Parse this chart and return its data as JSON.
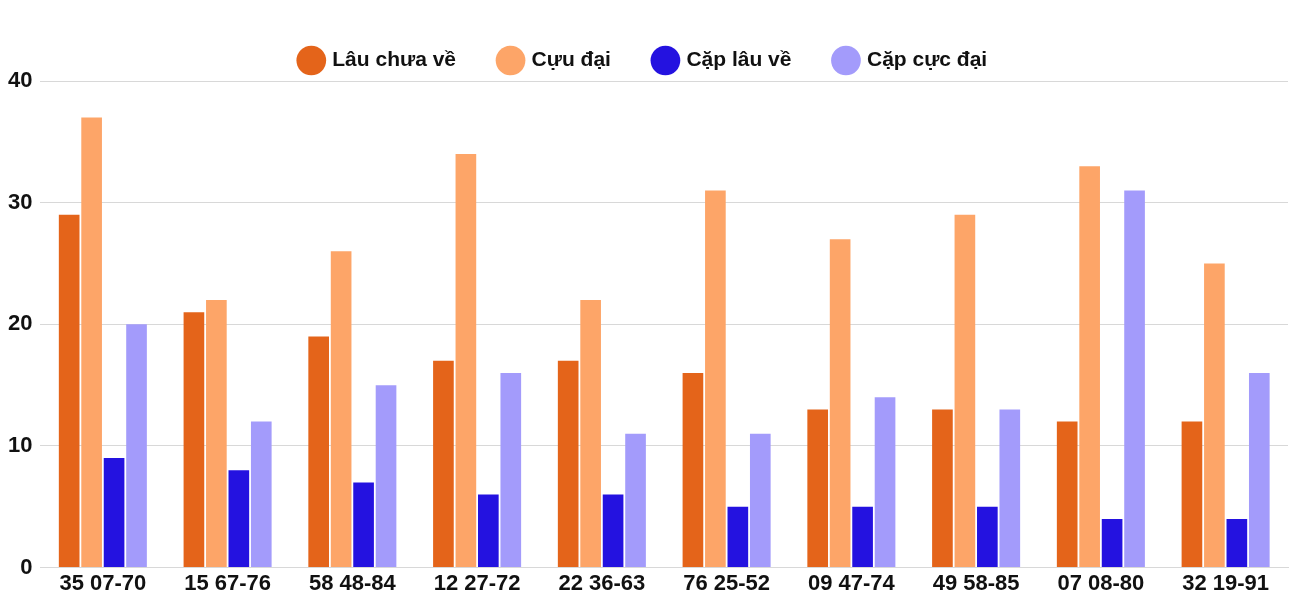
{
  "chart_data": {
    "type": "bar",
    "categories": [
      "35 07-70",
      "15 67-76",
      "58 48-84",
      "12 27-72",
      "22 36-63",
      "76 25-52",
      "09 47-74",
      "49 58-85",
      "07 08-80",
      "32 19-91"
    ],
    "series": [
      {
        "name": "Lâu chưa về",
        "color": "#e4641a",
        "values": [
          29,
          21,
          19,
          17,
          17,
          16,
          13,
          13,
          12,
          12
        ]
      },
      {
        "name": "Cựu đại",
        "color": "#fda568",
        "values": [
          37,
          22,
          26,
          34,
          22,
          31,
          27,
          29,
          33,
          25
        ]
      },
      {
        "name": "Cặp lâu về",
        "color": "#2412e0",
        "values": [
          9,
          8,
          7,
          6,
          6,
          5,
          5,
          5,
          4,
          4
        ]
      },
      {
        "name": "Cặp cực đại",
        "color": "#a39bfb",
        "values": [
          20,
          12,
          15,
          16,
          11,
          11,
          14,
          13,
          31,
          16
        ]
      }
    ],
    "ylim": [
      0,
      40
    ],
    "yticks": [
      0,
      10,
      20,
      30,
      40
    ],
    "grid": "y",
    "legend": "top"
  }
}
